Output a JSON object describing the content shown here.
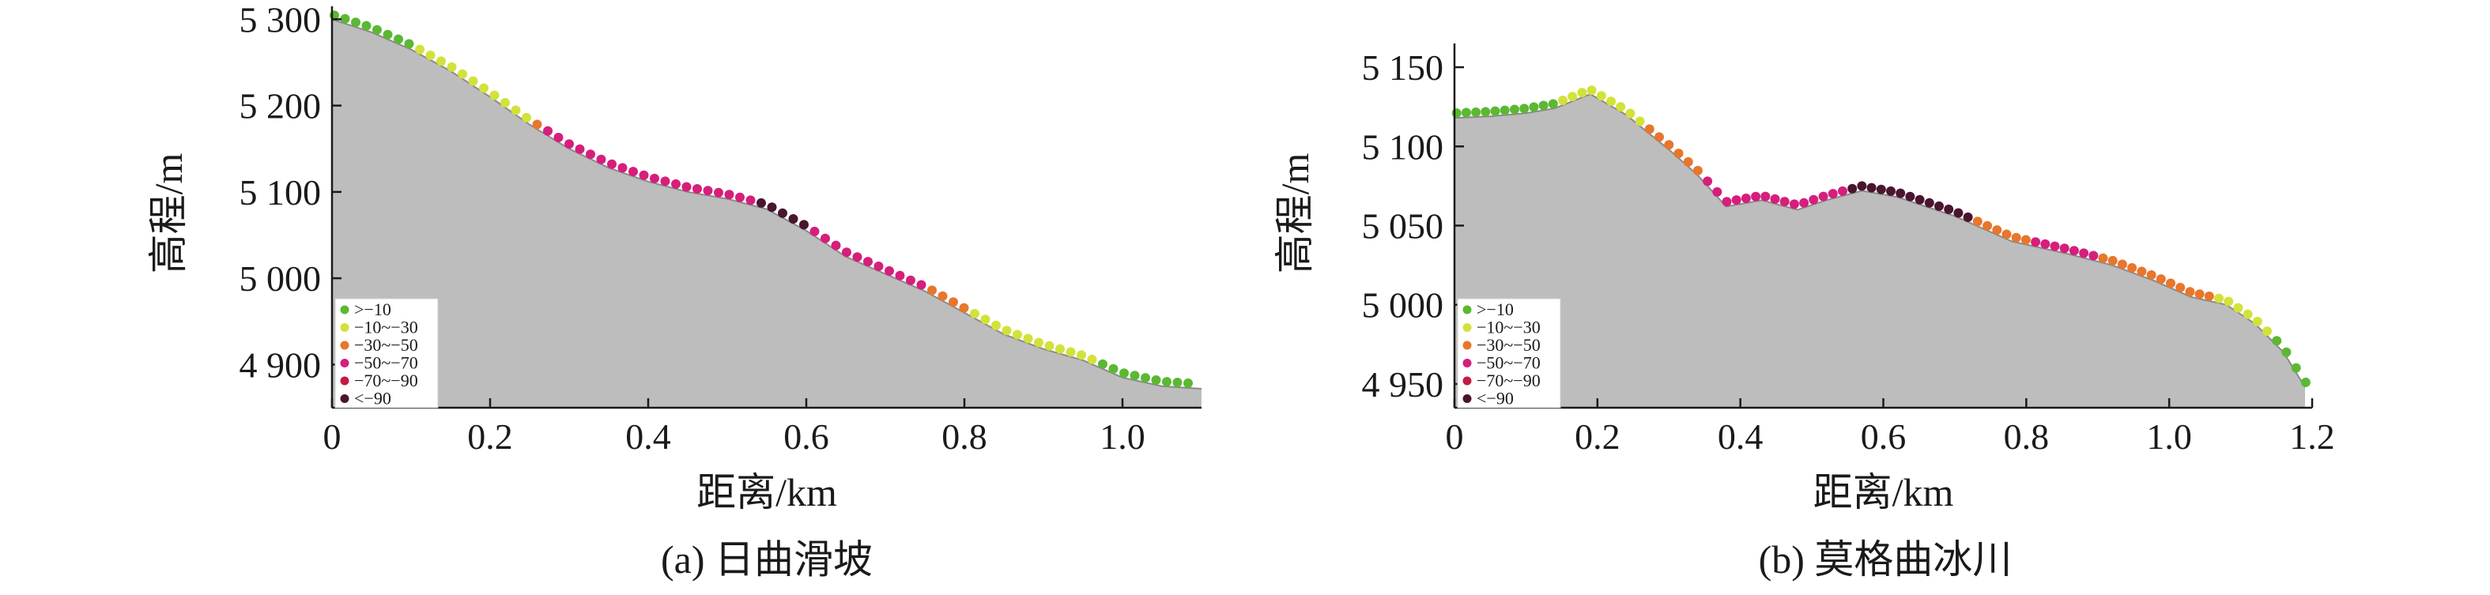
{
  "chart_data": [
    {
      "type": "area",
      "caption": "(a) 日曲滑坡",
      "xlabel": "距离/km",
      "ylabel": "高程/m",
      "xlim": [
        0,
        1.1
      ],
      "ylim": [
        4850,
        5315
      ],
      "xticks": [
        {
          "value": 0,
          "label": "0"
        },
        {
          "value": 0.2,
          "label": "0.2"
        },
        {
          "value": 0.4,
          "label": "0.4"
        },
        {
          "value": 0.6,
          "label": "0.6"
        },
        {
          "value": 0.8,
          "label": "0.8"
        },
        {
          "value": 1.0,
          "label": "1.0"
        }
      ],
      "yticks": [
        {
          "value": 4900,
          "label": "4 900"
        },
        {
          "value": 5000,
          "label": "5 000"
        },
        {
          "value": 5100,
          "label": "5 100"
        },
        {
          "value": 5200,
          "label": "5 200"
        },
        {
          "value": 5300,
          "label": "5 300"
        }
      ],
      "profile": {
        "x": [
          0,
          0.05,
          0.1,
          0.15,
          0.2,
          0.25,
          0.3,
          0.35,
          0.4,
          0.45,
          0.5,
          0.55,
          0.6,
          0.65,
          0.7,
          0.75,
          0.8,
          0.85,
          0.9,
          0.95,
          1.0,
          1.05,
          1.1
        ],
        "y": [
          5300,
          5285,
          5265,
          5240,
          5210,
          5178,
          5150,
          5128,
          5112,
          5100,
          5092,
          5080,
          5055,
          5025,
          5005,
          4985,
          4960,
          4935,
          4918,
          4905,
          4885,
          4875,
          4872
        ]
      },
      "legend": [
        {
          "label": ">−10",
          "color": "#5cb832"
        },
        {
          "label": "−10~−30",
          "color": "#d2e23a"
        },
        {
          "label": "−30~−50",
          "color": "#e8762c"
        },
        {
          "label": "−50~−70",
          "color": "#d61e7c"
        },
        {
          "label": "−70~−90",
          "color": "#c21a46"
        },
        {
          "label": "<−90",
          "color": "#4a1530"
        }
      ],
      "legend_position": "bottom-left",
      "point_spacing_km": 0.0135,
      "point_classes": [
        {
          "to": 0.1,
          "class": 0
        },
        {
          "to": 0.25,
          "class": 1
        },
        {
          "to": 0.27,
          "class": 2
        },
        {
          "to": 0.53,
          "class": 3
        },
        {
          "to": 0.6,
          "class": 5
        },
        {
          "to": 0.75,
          "class": 3
        },
        {
          "to": 0.81,
          "class": 2
        },
        {
          "to": 0.97,
          "class": 1
        },
        {
          "to": 1.09,
          "class": 0
        }
      ]
    },
    {
      "type": "area",
      "caption": "(b) 莫格曲冰川",
      "xlabel": "距离/km",
      "ylabel": "高程/m",
      "xlim": [
        0,
        1.2
      ],
      "ylim": [
        4935,
        5165
      ],
      "xticks": [
        {
          "value": 0,
          "label": "0"
        },
        {
          "value": 0.2,
          "label": "0.2"
        },
        {
          "value": 0.4,
          "label": "0.4"
        },
        {
          "value": 0.6,
          "label": "0.6"
        },
        {
          "value": 0.8,
          "label": "0.8"
        },
        {
          "value": 1.0,
          "label": "1.0"
        },
        {
          "value": 1.2,
          "label": "1.2"
        }
      ],
      "yticks": [
        {
          "value": 4950,
          "label": "4 950"
        },
        {
          "value": 5000,
          "label": "5 000"
        },
        {
          "value": 5050,
          "label": "5 050"
        },
        {
          "value": 5100,
          "label": "5 100"
        },
        {
          "value": 5150,
          "label": "5 150"
        }
      ],
      "profile": {
        "x": [
          0,
          0.05,
          0.1,
          0.14,
          0.19,
          0.24,
          0.3,
          0.34,
          0.38,
          0.43,
          0.48,
          0.52,
          0.57,
          0.62,
          0.7,
          0.78,
          0.86,
          0.92,
          0.98,
          1.03,
          1.08,
          1.12,
          1.16,
          1.19
        ],
        "y": [
          5118,
          5119,
          5121,
          5124,
          5133,
          5120,
          5098,
          5082,
          5062,
          5066,
          5060,
          5066,
          5072,
          5068,
          5056,
          5040,
          5032,
          5025,
          5015,
          5005,
          5000,
          4988,
          4970,
          4948
        ]
      },
      "legend": [
        {
          "label": ">−10",
          "color": "#5cb832"
        },
        {
          "label": "−10~−30",
          "color": "#d2e23a"
        },
        {
          "label": "−30~−50",
          "color": "#e8762c"
        },
        {
          "label": "−50~−70",
          "color": "#d61e7c"
        },
        {
          "label": "−70~−90",
          "color": "#c21a46"
        },
        {
          "label": "<−90",
          "color": "#4a1530"
        }
      ],
      "legend_position": "bottom-left",
      "point_spacing_km": 0.0135,
      "point_classes": [
        {
          "to": 0.14,
          "class": 0
        },
        {
          "to": 0.26,
          "class": 1
        },
        {
          "to": 0.35,
          "class": 2
        },
        {
          "to": 0.55,
          "class": 3
        },
        {
          "to": 0.73,
          "class": 5
        },
        {
          "to": 0.8,
          "class": 2
        },
        {
          "to": 0.9,
          "class": 3
        },
        {
          "to": 1.06,
          "class": 2
        },
        {
          "to": 1.14,
          "class": 1
        },
        {
          "to": 1.2,
          "class": 0
        }
      ]
    }
  ]
}
